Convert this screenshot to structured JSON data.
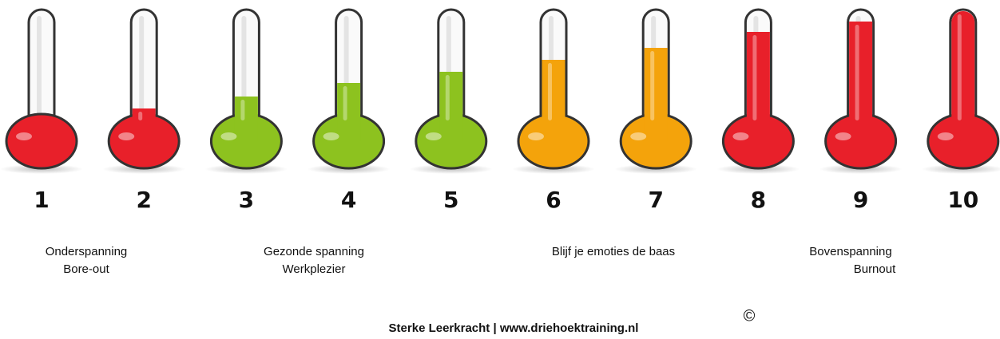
{
  "items": [
    {
      "label": "1"
    },
    {
      "label": "2"
    },
    {
      "label": "3"
    },
    {
      "label": "4"
    },
    {
      "label": "5"
    },
    {
      "label": "6"
    },
    {
      "label": "7"
    },
    {
      "label": "8"
    },
    {
      "label": "9"
    },
    {
      "label": "10"
    }
  ],
  "captions": [
    {
      "lines": [
        "Onderspanning",
        "Bore-out"
      ]
    },
    {
      "lines": [
        "Gezonde spanning",
        "Werkplezier"
      ]
    },
    {
      "lines": [
        "Blijf je emoties de baas"
      ]
    },
    {
      "lines": [
        "Bovenspanning",
        "Burnout"
      ]
    }
  ],
  "copyright": "©",
  "footer": "Sterke Leerkracht | www.driehoektraining.nl"
}
